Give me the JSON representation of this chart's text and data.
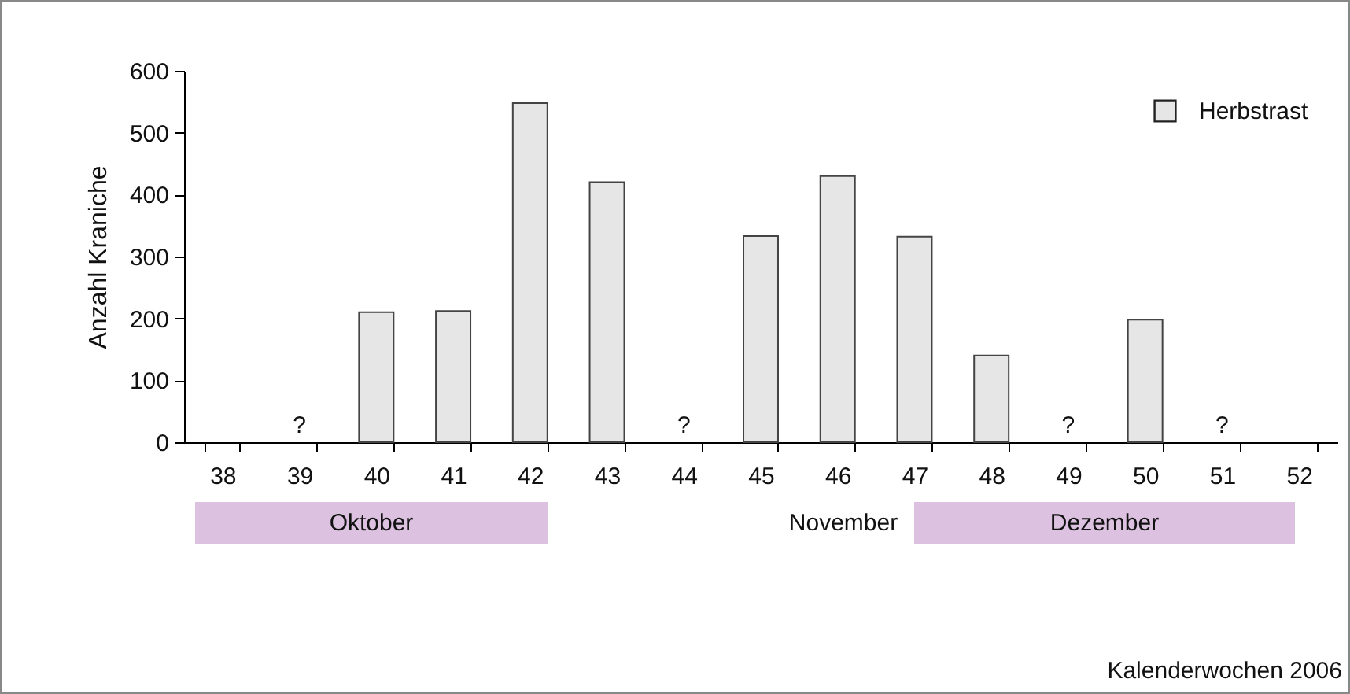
{
  "chart_data": {
    "type": "bar",
    "ylabel": "Anzahl Kraniche",
    "categories": [
      "38",
      "39",
      "40",
      "41",
      "42",
      "43",
      "44",
      "45",
      "46",
      "47",
      "48",
      "49",
      "50",
      "51",
      "52"
    ],
    "series": [
      {
        "name": "Herbstrast",
        "color": "#e6e6e6",
        "values": [
          null,
          null,
          210,
          212,
          548,
          420,
          null,
          333,
          430,
          332,
          140,
          null,
          198,
          null,
          null
        ]
      }
    ],
    "ylim": [
      0,
      600
    ],
    "yticks": [
      0,
      100,
      200,
      300,
      400,
      500,
      600
    ],
    "grid": false,
    "legend": "top right",
    "annotations": [
      "?",
      "?",
      "?",
      "?",
      "Oktober",
      "November",
      "Dezember",
      "Kalenderwochen 2006"
    ]
  }
}
